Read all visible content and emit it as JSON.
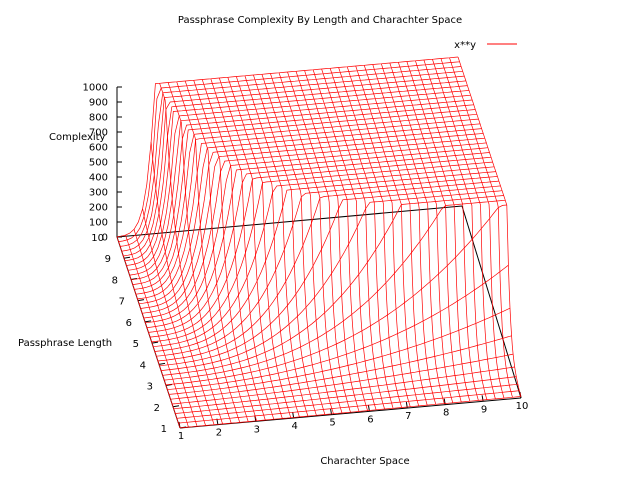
{
  "chart_data": {
    "type": "surface",
    "title": "Passphrase Complexity By Length and Charachter Space",
    "xlabel": "Charachter Space",
    "ylabel": "Passphrase Length",
    "zlabel": "Complexity",
    "function": "x**y",
    "legend": {
      "label": "x**y",
      "position": "top-right"
    },
    "x_ticks": [
      1,
      2,
      3,
      4,
      5,
      6,
      7,
      8,
      9,
      10
    ],
    "y_ticks": [
      1,
      2,
      3,
      4,
      5,
      6,
      7,
      8,
      9,
      10
    ],
    "z_ticks": [
      0,
      100,
      200,
      300,
      400,
      500,
      600,
      700,
      800,
      900,
      1000
    ],
    "xlim": [
      1,
      10
    ],
    "ylim": [
      1,
      10
    ],
    "zlim": [
      0,
      1000
    ],
    "grid_samples": 40,
    "color": "#ff0000"
  }
}
